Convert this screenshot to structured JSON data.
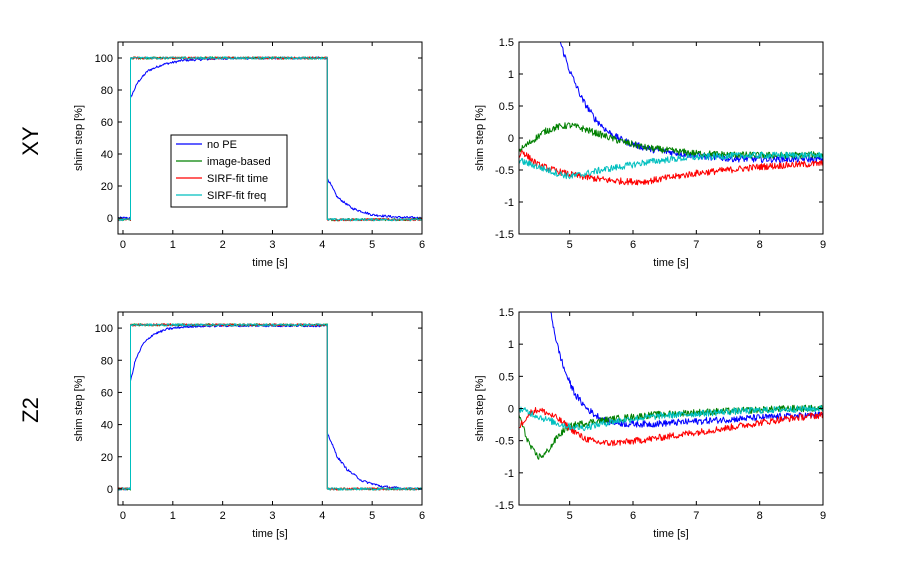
{
  "figure": {
    "row_labels": [
      "XY",
      "Z2"
    ],
    "series_colors": {
      "no PE": "#0000ff",
      "image-based": "#008000",
      "SIRF-fit time": "#ff0000",
      "SIRF-fit freq": "#00bfbf"
    }
  },
  "legend": {
    "location": "inside lower-left of top-left plot",
    "entries": [
      "no PE",
      "image-based",
      "SIRF-fit time",
      "SIRF-fit freq"
    ]
  },
  "chart_data": [
    {
      "id": "xy-full",
      "type": "line",
      "title": "",
      "xlabel": "time [s]",
      "ylabel": "shim step [%]",
      "xlim": [
        -0.1,
        6
      ],
      "ylim": [
        -10,
        110
      ],
      "xticks": [
        0,
        1,
        2,
        3,
        4,
        5,
        6
      ],
      "yticks": [
        0,
        20,
        40,
        60,
        80,
        100
      ],
      "step_on": 0.15,
      "step_off": 4.1,
      "series": [
        {
          "name": "no PE",
          "color": "#0000ff",
          "points": [
            [
              -0.1,
              0
            ],
            [
              0.15,
              0
            ],
            [
              0.15,
              75
            ],
            [
              0.3,
              85
            ],
            [
              0.5,
              92
            ],
            [
              0.8,
              96
            ],
            [
              1.2,
              98.5
            ],
            [
              2,
              99.8
            ],
            [
              4.1,
              100
            ],
            [
              4.1,
              25
            ],
            [
              4.3,
              13
            ],
            [
              4.6,
              6
            ],
            [
              5,
              2
            ],
            [
              5.5,
              0.5
            ],
            [
              6,
              0
            ]
          ]
        },
        {
          "name": "image-based",
          "color": "#008000",
          "points": [
            [
              -0.1,
              -1
            ],
            [
              0.15,
              -1
            ],
            [
              0.15,
              100
            ],
            [
              4.1,
              100
            ],
            [
              4.1,
              -1
            ],
            [
              6,
              -1
            ]
          ]
        },
        {
          "name": "SIRF-fit time",
          "color": "#ff0000",
          "points": [
            [
              -0.1,
              -1
            ],
            [
              0.15,
              -1
            ],
            [
              0.15,
              100
            ],
            [
              4.1,
              100
            ],
            [
              4.1,
              -1
            ],
            [
              6,
              -1
            ]
          ]
        },
        {
          "name": "SIRF-fit freq",
          "color": "#00bfbf",
          "points": [
            [
              -0.1,
              -1
            ],
            [
              0.15,
              -1
            ],
            [
              0.15,
              100
            ],
            [
              4.1,
              100
            ],
            [
              4.1,
              -1
            ],
            [
              6,
              -1
            ]
          ]
        }
      ]
    },
    {
      "id": "xy-zoom",
      "type": "line",
      "title": "",
      "xlabel": "time [s]",
      "ylabel": "shim step [%]",
      "xlim": [
        4.2,
        9
      ],
      "ylim": [
        -1.5,
        1.5
      ],
      "xticks": [
        5,
        6,
        7,
        8,
        9
      ],
      "yticks": [
        -1.5,
        -1,
        -0.5,
        0,
        0.5,
        1,
        1.5
      ],
      "series": [
        {
          "name": "no PE",
          "color": "#0000ff",
          "points": [
            [
              4.85,
              1.5
            ],
            [
              5,
              1.05
            ],
            [
              5.2,
              0.6
            ],
            [
              5.4,
              0.3
            ],
            [
              5.6,
              0.1
            ],
            [
              5.8,
              -0.02
            ],
            [
              6,
              -0.1
            ],
            [
              6.3,
              -0.18
            ],
            [
              6.6,
              -0.22
            ],
            [
              7,
              -0.28
            ],
            [
              7.5,
              -0.32
            ],
            [
              8,
              -0.33
            ],
            [
              8.5,
              -0.33
            ],
            [
              9,
              -0.33
            ]
          ]
        },
        {
          "name": "image-based",
          "color": "#008000",
          "points": [
            [
              4.2,
              -0.2
            ],
            [
              4.4,
              -0.05
            ],
            [
              4.6,
              0.1
            ],
            [
              4.8,
              0.17
            ],
            [
              5,
              0.2
            ],
            [
              5.2,
              0.15
            ],
            [
              5.5,
              0.05
            ],
            [
              5.8,
              -0.05
            ],
            [
              6.2,
              -0.15
            ],
            [
              6.6,
              -0.2
            ],
            [
              7,
              -0.24
            ],
            [
              7.5,
              -0.26
            ],
            [
              8,
              -0.27
            ],
            [
              8.5,
              -0.27
            ],
            [
              9,
              -0.26
            ]
          ]
        },
        {
          "name": "SIRF-fit time",
          "color": "#ff0000",
          "points": [
            [
              4.2,
              -0.3
            ],
            [
              4.25,
              -0.2
            ],
            [
              4.35,
              -0.3
            ],
            [
              4.5,
              -0.42
            ],
            [
              4.8,
              -0.52
            ],
            [
              5,
              -0.57
            ],
            [
              5.3,
              -0.62
            ],
            [
              5.6,
              -0.66
            ],
            [
              5.9,
              -0.68
            ],
            [
              6.2,
              -0.68
            ],
            [
              6.5,
              -0.63
            ],
            [
              7,
              -0.55
            ],
            [
              7.5,
              -0.5
            ],
            [
              8,
              -0.45
            ],
            [
              8.5,
              -0.42
            ],
            [
              9,
              -0.4
            ]
          ]
        },
        {
          "name": "SIRF-fit freq",
          "color": "#00bfbf",
          "points": [
            [
              4.2,
              -0.35
            ],
            [
              4.5,
              -0.45
            ],
            [
              4.8,
              -0.55
            ],
            [
              5,
              -0.6
            ],
            [
              5.2,
              -0.57
            ],
            [
              5.5,
              -0.5
            ],
            [
              5.8,
              -0.45
            ],
            [
              6.2,
              -0.38
            ],
            [
              6.6,
              -0.33
            ],
            [
              7,
              -0.3
            ],
            [
              7.5,
              -0.28
            ],
            [
              8,
              -0.27
            ],
            [
              8.5,
              -0.27
            ],
            [
              9,
              -0.27
            ]
          ]
        }
      ]
    },
    {
      "id": "z2-full",
      "type": "line",
      "title": "",
      "xlabel": "time [s]",
      "ylabel": "shim step [%]",
      "xlim": [
        -0.1,
        6
      ],
      "ylim": [
        -10,
        110
      ],
      "xticks": [
        0,
        1,
        2,
        3,
        4,
        5,
        6
      ],
      "yticks": [
        0,
        20,
        40,
        60,
        80,
        100
      ],
      "step_on": 0.15,
      "step_off": 4.1,
      "series": [
        {
          "name": "no PE",
          "color": "#0000ff",
          "points": [
            [
              -0.1,
              0
            ],
            [
              0.15,
              0
            ],
            [
              0.15,
              67
            ],
            [
              0.25,
              80
            ],
            [
              0.4,
              90
            ],
            [
              0.6,
              96
            ],
            [
              0.9,
              99.5
            ],
            [
              1.3,
              101
            ],
            [
              2,
              101.5
            ],
            [
              4.1,
              101.5
            ],
            [
              4.1,
              35
            ],
            [
              4.3,
              20
            ],
            [
              4.5,
              12
            ],
            [
              4.8,
              5
            ],
            [
              5.2,
              1.5
            ],
            [
              5.6,
              0.3
            ],
            [
              6,
              0
            ]
          ]
        },
        {
          "name": "image-based",
          "color": "#008000",
          "points": [
            [
              -0.1,
              0
            ],
            [
              0.15,
              0
            ],
            [
              0.15,
              102
            ],
            [
              4.1,
              102
            ],
            [
              4.1,
              0
            ],
            [
              6,
              0
            ]
          ]
        },
        {
          "name": "SIRF-fit time",
          "color": "#ff0000",
          "points": [
            [
              -0.1,
              0
            ],
            [
              0.15,
              0
            ],
            [
              0.15,
              102
            ],
            [
              4.1,
              102
            ],
            [
              4.1,
              0
            ],
            [
              6,
              0
            ]
          ]
        },
        {
          "name": "SIRF-fit freq",
          "color": "#00bfbf",
          "points": [
            [
              -0.1,
              0
            ],
            [
              0.15,
              0
            ],
            [
              0.15,
              102
            ],
            [
              4.1,
              102
            ],
            [
              4.1,
              0
            ],
            [
              6,
              0
            ]
          ]
        }
      ]
    },
    {
      "id": "z2-zoom",
      "type": "line",
      "title": "",
      "xlabel": "time [s]",
      "ylabel": "shim step [%]",
      "xlim": [
        4.2,
        9
      ],
      "ylim": [
        -1.5,
        1.5
      ],
      "xticks": [
        5,
        6,
        7,
        8,
        9
      ],
      "yticks": [
        -1.5,
        -1,
        -0.5,
        0,
        0.5,
        1,
        1.5
      ],
      "series": [
        {
          "name": "no PE",
          "color": "#0000ff",
          "points": [
            [
              4.7,
              1.5
            ],
            [
              4.8,
              1.0
            ],
            [
              4.9,
              0.65
            ],
            [
              5,
              0.4
            ],
            [
              5.1,
              0.2
            ],
            [
              5.25,
              0.02
            ],
            [
              5.4,
              -0.1
            ],
            [
              5.6,
              -0.2
            ],
            [
              5.9,
              -0.24
            ],
            [
              6.3,
              -0.24
            ],
            [
              7,
              -0.2
            ],
            [
              7.5,
              -0.17
            ],
            [
              8,
              -0.14
            ],
            [
              8.5,
              -0.12
            ],
            [
              9,
              -0.1
            ]
          ]
        },
        {
          "name": "image-based",
          "color": "#008000",
          "points": [
            [
              4.2,
              -0.1
            ],
            [
              4.3,
              -0.4
            ],
            [
              4.4,
              -0.63
            ],
            [
              4.5,
              -0.75
            ],
            [
              4.6,
              -0.72
            ],
            [
              4.7,
              -0.6
            ],
            [
              4.8,
              -0.45
            ],
            [
              4.95,
              -0.3
            ],
            [
              5.1,
              -0.25
            ],
            [
              5.4,
              -0.2
            ],
            [
              5.8,
              -0.15
            ],
            [
              6.3,
              -0.1
            ],
            [
              7,
              -0.06
            ],
            [
              7.5,
              -0.04
            ],
            [
              8,
              -0.02
            ],
            [
              8.5,
              0
            ],
            [
              9,
              0
            ]
          ]
        },
        {
          "name": "SIRF-fit time",
          "color": "#ff0000",
          "points": [
            [
              4.2,
              -0.3
            ],
            [
              4.3,
              -0.15
            ],
            [
              4.4,
              -0.05
            ],
            [
              4.5,
              -0.02
            ],
            [
              4.6,
              -0.05
            ],
            [
              4.8,
              -0.15
            ],
            [
              5,
              -0.3
            ],
            [
              5.2,
              -0.45
            ],
            [
              5.4,
              -0.52
            ],
            [
              5.6,
              -0.54
            ],
            [
              5.9,
              -0.52
            ],
            [
              6.3,
              -0.47
            ],
            [
              7,
              -0.37
            ],
            [
              7.5,
              -0.3
            ],
            [
              8,
              -0.22
            ],
            [
              8.5,
              -0.15
            ],
            [
              9,
              -0.1
            ]
          ]
        },
        {
          "name": "SIRF-fit freq",
          "color": "#00bfbf",
          "points": [
            [
              4.2,
              0
            ],
            [
              4.4,
              -0.08
            ],
            [
              4.6,
              -0.16
            ],
            [
              4.8,
              -0.23
            ],
            [
              5,
              -0.28
            ],
            [
              5.2,
              -0.3
            ],
            [
              5.4,
              -0.26
            ],
            [
              5.7,
              -0.2
            ],
            [
              6,
              -0.16
            ],
            [
              6.5,
              -0.11
            ],
            [
              7,
              -0.08
            ],
            [
              7.5,
              -0.05
            ],
            [
              8,
              -0.03
            ],
            [
              8.5,
              -0.01
            ],
            [
              9,
              0
            ]
          ]
        }
      ]
    }
  ]
}
